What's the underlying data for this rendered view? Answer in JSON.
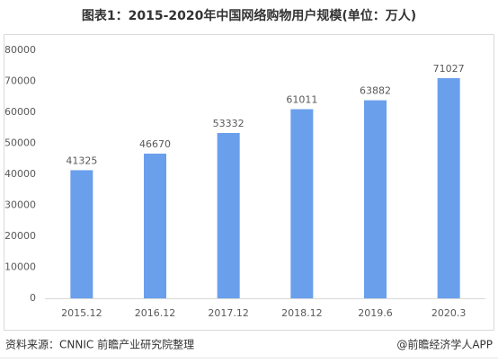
{
  "chart_data": {
    "type": "bar",
    "title": "图表1：2015-2020年中国网络购物用户规模(单位：万人)",
    "categories": [
      "2015.12",
      "2016.12",
      "2017.12",
      "2018.12",
      "2019.6",
      "2020.3"
    ],
    "values": [
      41325,
      46670,
      53332,
      61011,
      63882,
      71027
    ],
    "color": "#6a9fec",
    "ylim": [
      0,
      80000
    ],
    "yticks": [
      0,
      10000,
      20000,
      30000,
      40000,
      50000,
      60000,
      70000,
      80000
    ],
    "grid": false,
    "source": "资料来源：CNNIC 前瞻产业研究院整理",
    "credit": "@前瞻经济学人APP"
  }
}
